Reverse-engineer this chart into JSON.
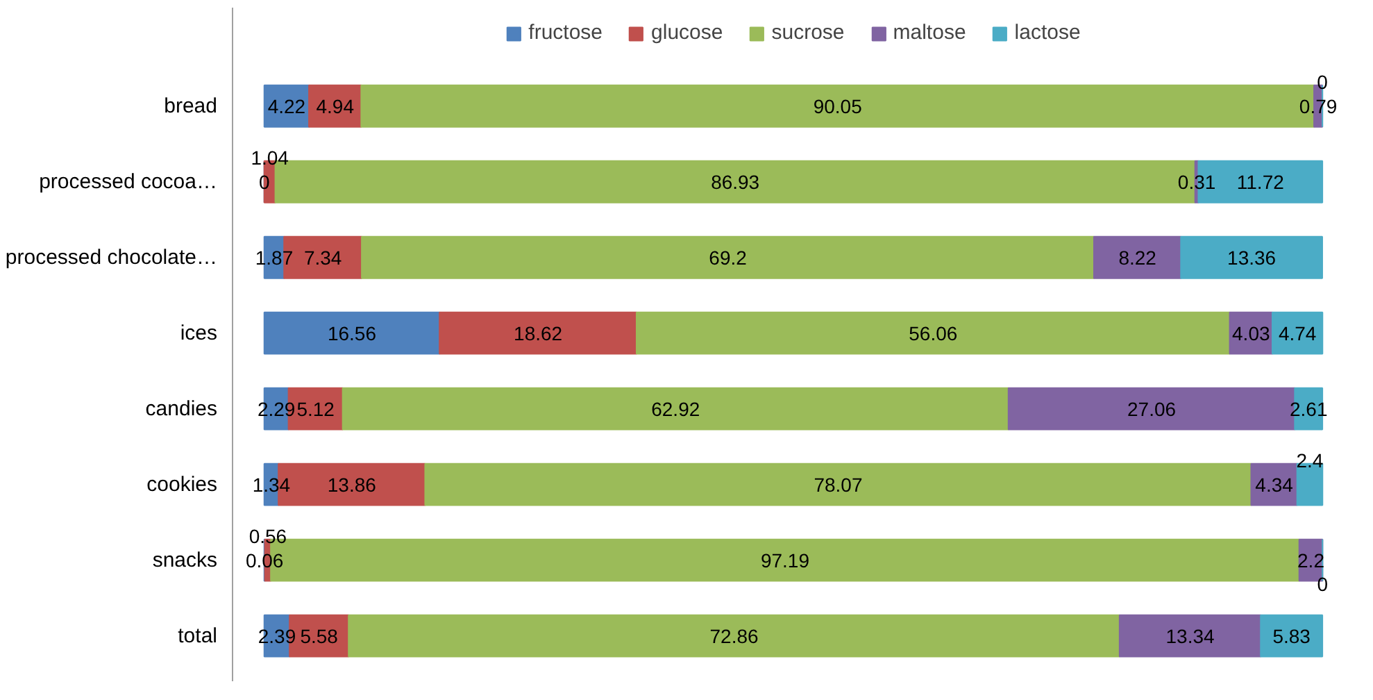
{
  "chart_data": {
    "type": "bar",
    "orientation": "horizontal",
    "stacked": true,
    "categories": [
      "bread",
      "processed cocoa…",
      "processed chocolate…",
      "ices",
      "candies",
      "cookies",
      "snacks",
      "total"
    ],
    "series": [
      {
        "name": "fructose",
        "color": "#4f81bd",
        "values": [
          4.22,
          0,
          1.87,
          16.56,
          2.29,
          1.34,
          0.06,
          2.39
        ]
      },
      {
        "name": "glucose",
        "color": "#c0504d",
        "values": [
          4.94,
          1.04,
          7.34,
          18.62,
          5.12,
          13.86,
          0.56,
          5.58
        ]
      },
      {
        "name": "sucrose",
        "color": "#9bbb59",
        "values": [
          90.05,
          86.93,
          69.2,
          56.06,
          62.92,
          78.07,
          97.19,
          72.86
        ]
      },
      {
        "name": "maltose",
        "color": "#8064a2",
        "values": [
          0.79,
          0.31,
          8.22,
          4.03,
          27.06,
          4.34,
          2.2,
          13.34
        ]
      },
      {
        "name": "lactose",
        "color": "#4bacc6",
        "values": [
          0,
          11.72,
          13.36,
          4.74,
          2.61,
          2.4,
          0,
          5.83
        ]
      }
    ],
    "data_labels": true,
    "legend": "top",
    "tick_labels": "y",
    "grid": false
  }
}
